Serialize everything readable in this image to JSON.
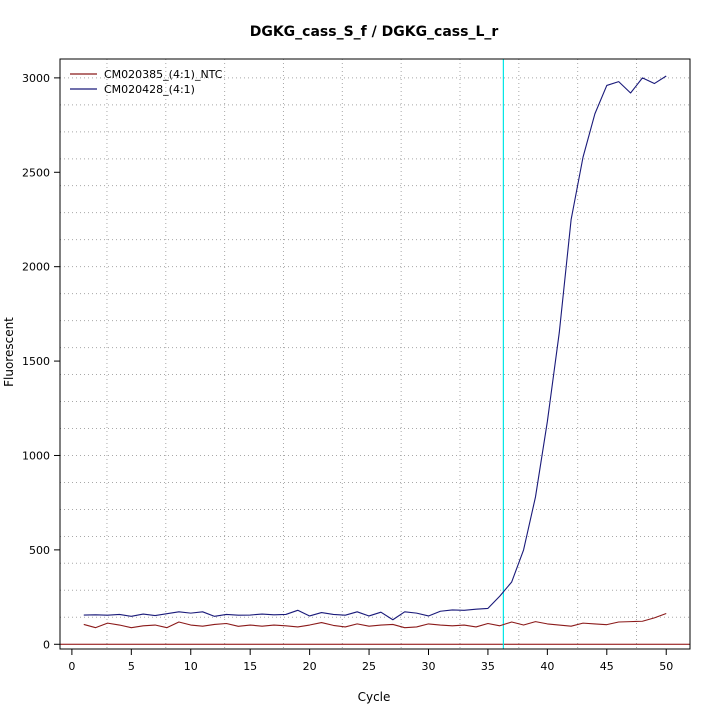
{
  "chart_data": {
    "type": "line",
    "title": "DGKG_cass_S_f / DGKG_cass_L_r",
    "xlabel": "Cycle",
    "ylabel": "Fluorescent",
    "xlim": [
      -1,
      52
    ],
    "ylim": [
      -25,
      3100
    ],
    "x_ticks": [
      0,
      5,
      10,
      15,
      20,
      25,
      30,
      35,
      40,
      45,
      50
    ],
    "y_ticks": [
      0,
      500,
      1000,
      1500,
      2000,
      2500,
      3000
    ],
    "grid": true,
    "grid_x": [
      2.95,
      7.9,
      12.85,
      17.8,
      22.75,
      27.7,
      32.65,
      37.6,
      42.55,
      47.5
    ],
    "grid_y": [
      143,
      286,
      429,
      571,
      714,
      857,
      1000,
      1143,
      1286,
      1429,
      1571,
      1714,
      1857,
      2000,
      2143,
      2286,
      2429,
      2571,
      2714,
      2857,
      3000
    ],
    "threshold_x": 36.3,
    "threshold_color": "#00e5e5",
    "baseline_y": 0,
    "baseline_color": "#8b0000",
    "legend_position": "top-left",
    "x": [
      1,
      2,
      3,
      4,
      5,
      6,
      7,
      8,
      9,
      10,
      11,
      12,
      13,
      14,
      15,
      16,
      17,
      18,
      19,
      20,
      21,
      22,
      23,
      24,
      25,
      26,
      27,
      28,
      29,
      30,
      31,
      32,
      33,
      34,
      35,
      36,
      37,
      38,
      39,
      40,
      41,
      42,
      43,
      44,
      45,
      46,
      47,
      48,
      49,
      50
    ],
    "series": [
      {
        "name": "CM020385_(4:1)_NTC",
        "color": "#8b1a1a",
        "values": [
          105,
          88,
          112,
          102,
          88,
          98,
          102,
          88,
          118,
          102,
          96,
          105,
          110,
          95,
          102,
          96,
          102,
          98,
          92,
          102,
          115,
          100,
          92,
          108,
          96,
          102,
          105,
          88,
          92,
          108,
          102,
          98,
          102,
          92,
          110,
          98,
          118,
          102,
          120,
          108,
          102,
          96,
          112,
          108,
          104,
          118,
          120,
          122,
          140,
          163
        ]
      },
      {
        "name": "CM020428_(4:1)",
        "color": "#1a1a7a",
        "values": [
          155,
          156,
          154,
          158,
          148,
          160,
          152,
          162,
          172,
          165,
          172,
          148,
          158,
          154,
          155,
          160,
          156,
          158,
          180,
          150,
          168,
          158,
          154,
          172,
          150,
          170,
          130,
          172,
          165,
          150,
          175,
          182,
          180,
          186,
          190,
          255,
          330,
          500,
          780,
          1180,
          1650,
          2250,
          2580,
          2810,
          2960,
          2980,
          2920,
          3000,
          2970,
          3010
        ]
      }
    ]
  }
}
